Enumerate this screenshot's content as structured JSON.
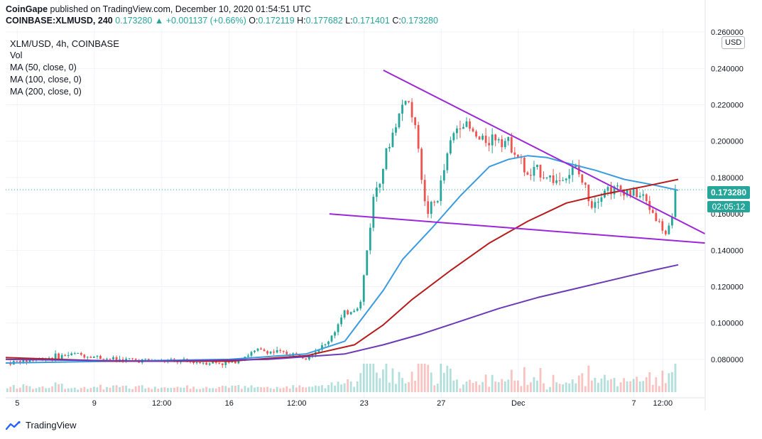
{
  "header": {
    "publisher": "CoinGape",
    "published_text": "published on TradingView.com, December 10, 2020 01:54:51 UTC",
    "symbol": "COINBASE:XLMUSD, 240",
    "last": "0.173280",
    "change": "▲ +0.001137 (+0.66%)",
    "o_label": "O:",
    "o_value": "0.172119",
    "h_label": "H:",
    "h_value": "0.177682",
    "l_label": "L:",
    "l_value": "0.171401",
    "c_label": "C:",
    "c_value": "0.173280"
  },
  "legend": {
    "title": "XLM/USD, 4h, COINBASE",
    "vol": "Vol",
    "ma50": "MA (50, close, 0)",
    "ma100": "MA (100, close, 0)",
    "ma200": "MA (200, close, 0)"
  },
  "price_axis": {
    "currency": "USD",
    "current_price": "0.173280",
    "countdown": "02:05:12"
  },
  "footer": {
    "brand": "TradingView"
  },
  "colors": {
    "up": "#26a69a",
    "down": "#ef5350",
    "ma50": "#3a9be0",
    "ma100": "#b71c1c",
    "ma200": "#6c3ab5",
    "trendline": "#9c27d9",
    "grid": "#f0f3fa"
  },
  "chart_data": {
    "type": "candlestick",
    "symbol": "XLM/USD",
    "interval": "4h",
    "exchange": "COINBASE",
    "ylim": [
      0.062,
      0.262
    ],
    "y_ticks": [
      0.08,
      0.1,
      0.12,
      0.14,
      0.16,
      0.18,
      0.2,
      0.22,
      0.24,
      0.26
    ],
    "x_ticks": [
      "5",
      "9",
      "12:00",
      "16",
      "12:00",
      "23",
      "27",
      "Dec",
      "7",
      "12:00"
    ],
    "x_tick_days": [
      5,
      9,
      12.5,
      16,
      19.5,
      23,
      27,
      31,
      37,
      38.5
    ],
    "x_range_days": [
      4.4,
      40.7
    ],
    "last_close": 0.17328,
    "anchors": [
      [
        4.4,
        0.078
      ],
      [
        6,
        0.08
      ],
      [
        8,
        0.083
      ],
      [
        10,
        0.08
      ],
      [
        13,
        0.079
      ],
      [
        16,
        0.078
      ],
      [
        17.5,
        0.085
      ],
      [
        20,
        0.082
      ],
      [
        21,
        0.088
      ],
      [
        22,
        0.105
      ],
      [
        22.8,
        0.11
      ],
      [
        23.5,
        0.17
      ],
      [
        24.5,
        0.205
      ],
      [
        25.2,
        0.226
      ],
      [
        25.8,
        0.2
      ],
      [
        26.2,
        0.16
      ],
      [
        26.8,
        0.168
      ],
      [
        27.5,
        0.2
      ],
      [
        28,
        0.212
      ],
      [
        29,
        0.2
      ],
      [
        30,
        0.203
      ],
      [
        30.8,
        0.196
      ],
      [
        31.5,
        0.18
      ],
      [
        32,
        0.184
      ],
      [
        33,
        0.178
      ],
      [
        34,
        0.185
      ],
      [
        34.8,
        0.166
      ],
      [
        35.5,
        0.174
      ],
      [
        36.5,
        0.173
      ],
      [
        37.5,
        0.169
      ],
      [
        38.2,
        0.157
      ],
      [
        38.7,
        0.148
      ],
      [
        39.1,
        0.158
      ],
      [
        39.3,
        0.17328
      ]
    ],
    "ma50": [
      [
        4.4,
        0.078
      ],
      [
        10,
        0.079
      ],
      [
        16,
        0.08
      ],
      [
        20,
        0.083
      ],
      [
        22,
        0.09
      ],
      [
        24,
        0.118
      ],
      [
        25,
        0.135
      ],
      [
        26.5,
        0.152
      ],
      [
        28,
        0.17
      ],
      [
        29.5,
        0.186
      ],
      [
        30.5,
        0.19
      ],
      [
        31.5,
        0.192
      ],
      [
        32.5,
        0.191
      ],
      [
        33.5,
        0.188
      ],
      [
        35,
        0.184
      ],
      [
        36.5,
        0.179
      ],
      [
        38,
        0.176
      ],
      [
        39.3,
        0.173
      ]
    ],
    "ma100": [
      [
        4.4,
        0.081
      ],
      [
        10,
        0.079
      ],
      [
        16,
        0.079
      ],
      [
        20,
        0.082
      ],
      [
        22.5,
        0.088
      ],
      [
        24,
        0.099
      ],
      [
        25.5,
        0.113
      ],
      [
        27.5,
        0.129
      ],
      [
        29.5,
        0.144
      ],
      [
        31.5,
        0.156
      ],
      [
        33.5,
        0.166
      ],
      [
        35.5,
        0.171
      ],
      [
        37.5,
        0.175
      ],
      [
        39.3,
        0.179
      ]
    ],
    "ma200": [
      [
        4.4,
        0.08
      ],
      [
        12,
        0.079
      ],
      [
        18,
        0.08
      ],
      [
        22,
        0.083
      ],
      [
        24,
        0.088
      ],
      [
        26,
        0.094
      ],
      [
        28,
        0.101
      ],
      [
        30,
        0.108
      ],
      [
        32,
        0.114
      ],
      [
        34,
        0.119
      ],
      [
        36,
        0.124
      ],
      [
        38,
        0.129
      ],
      [
        39.3,
        0.132
      ]
    ],
    "trendlines": [
      {
        "name": "upper",
        "points": [
          [
            24,
            0.239
          ],
          [
            40.7,
            0.149
          ]
        ]
      },
      {
        "name": "lower",
        "points": [
          [
            21.2,
            0.16
          ],
          [
            40.7,
            0.144
          ]
        ]
      }
    ]
  }
}
